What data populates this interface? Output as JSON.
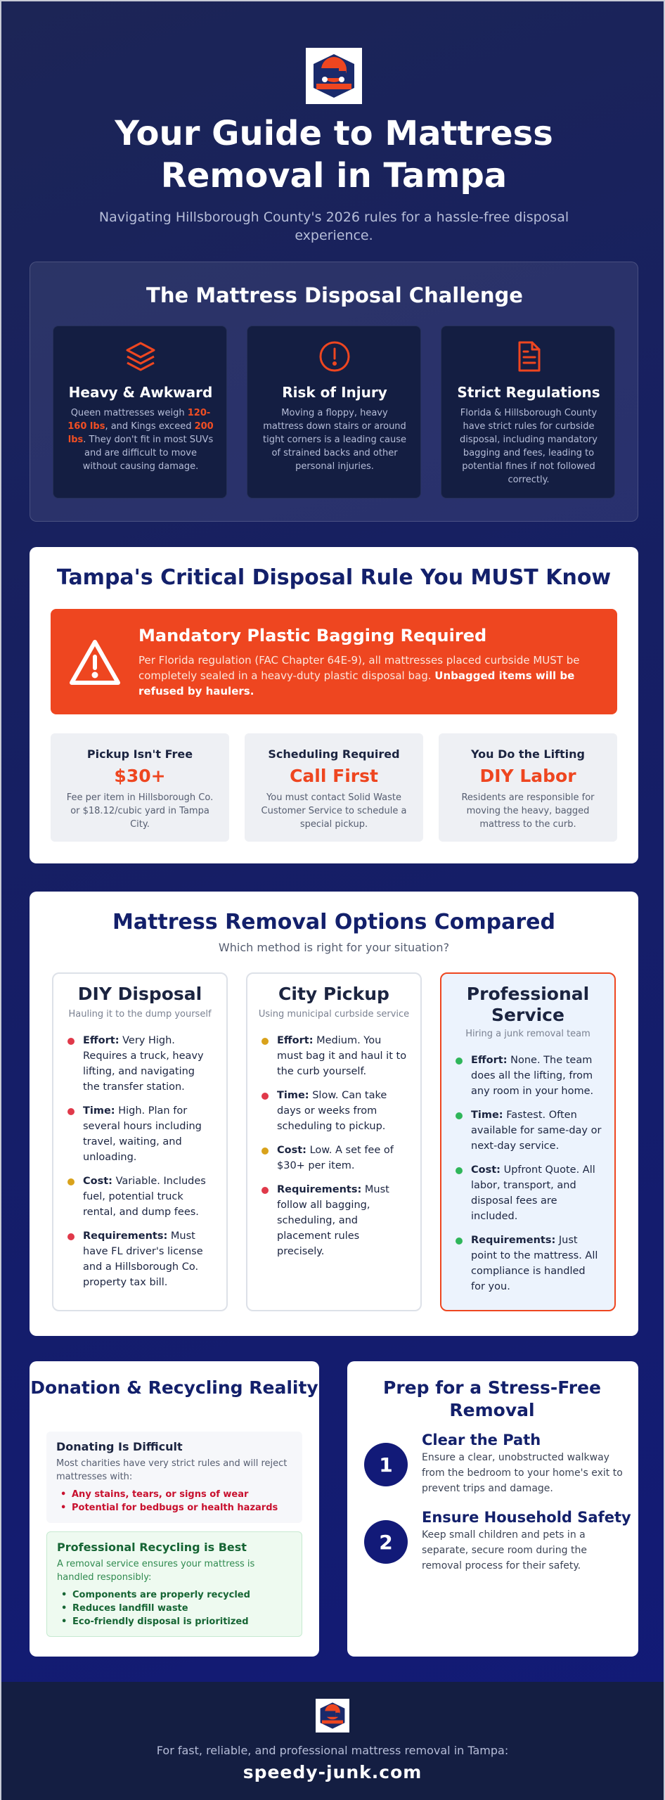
{
  "header": {
    "logo_alt": "SPEEDY HAULING",
    "title": "Your Guide to Mattress Removal in Tampa",
    "subtitle": "Navigating Hillsborough County's 2026 rules for a hassle-free disposal experience."
  },
  "challenge": {
    "title": "The Mattress Disposal Challenge",
    "cards": [
      {
        "icon": "layers-icon",
        "title": "Heavy & Awkward",
        "pre": "Queen mattresses weigh ",
        "hl1": "120-160 lbs",
        "mid": ", and Kings exceed ",
        "hl2": "200 lbs",
        "post": ". They don't fit in most SUVs and are difficult to move without causing damage."
      },
      {
        "icon": "alert-circle-icon",
        "title": "Risk of Injury",
        "text": "Moving a floppy, heavy mattress down stairs or around tight corners is a leading cause of strained backs and other personal injuries."
      },
      {
        "icon": "document-icon",
        "title": "Strict Regulations",
        "text": "Florida & Hillsborough County have strict rules for curbside disposal, including mandatory bagging and fees, leading to potential fines if not followed correctly."
      }
    ]
  },
  "rule": {
    "title": "Tampa's Critical Disposal Rule You MUST Know",
    "alert_title": "Mandatory Plastic Bagging Required",
    "alert_text": "Per Florida regulation (FAC Chapter 64E-9), all mattresses placed curbside MUST be completely sealed in a heavy-duty plastic disposal bag. ",
    "alert_bold": "Unbagged items will be refused by haulers.",
    "stats": [
      {
        "title": "Pickup Isn't Free",
        "value": "$30+",
        "text": "Fee per item in Hillsborough Co. or $18.12/cubic yard in Tampa City."
      },
      {
        "title": "Scheduling Required",
        "value": "Call First",
        "text": "You must contact Solid Waste Customer Service to schedule a special pickup."
      },
      {
        "title": "You Do the Lifting",
        "value": "DIY Labor",
        "text": "Residents are responsible for moving the heavy, bagged mattress to the curb."
      }
    ]
  },
  "options": {
    "title": "Mattress Removal Options Compared",
    "subtitle": "Which method is right for your situation?",
    "columns": [
      {
        "title": "DIY Disposal",
        "tagline": "Hauling it to the dump yourself",
        "items": [
          {
            "label": "Effort:",
            "text": " Very High. Requires a truck, heavy lifting, and navigating the transfer station.",
            "color": "#e0394a"
          },
          {
            "label": "Time:",
            "text": " High. Plan for several hours including travel, waiting, and unloading.",
            "color": "#e0394a"
          },
          {
            "label": "Cost:",
            "text": " Variable. Includes fuel, potential truck rental, and dump fees.",
            "color": "#d9a21b"
          },
          {
            "label": "Requirements:",
            "text": " Must have FL driver's license and a Hillsborough Co. property tax bill.",
            "color": "#e0394a"
          }
        ]
      },
      {
        "title": "City Pickup",
        "tagline": "Using municipal curbside service",
        "items": [
          {
            "label": "Effort:",
            "text": " Medium. You must bag it and haul it to the curb yourself.",
            "color": "#d9a21b"
          },
          {
            "label": "Time:",
            "text": " Slow. Can take days or weeks from scheduling to pickup.",
            "color": "#e0394a"
          },
          {
            "label": "Cost:",
            "text": " Low. A set fee of $30+ per item.",
            "color": "#d9a21b"
          },
          {
            "label": "Requirements:",
            "text": " Must follow all bagging, scheduling, and placement rules precisely.",
            "color": "#e0394a"
          }
        ]
      },
      {
        "title": "Professional Service",
        "tagline": "Hiring a junk removal team",
        "items": [
          {
            "label": "Effort:",
            "text": " None. The team does all the lifting, from any room in your home.",
            "color": "#2fb65a"
          },
          {
            "label": "Time:",
            "text": " Fastest. Often available for same-day or next-day service.",
            "color": "#2fb65a"
          },
          {
            "label": "Cost:",
            "text": " Upfront Quote. All labor, transport, and disposal fees are included.",
            "color": "#2fb65a"
          },
          {
            "label": "Requirements:",
            "text": " Just point to the mattress. All compliance is handled for you.",
            "color": "#2fb65a"
          }
        ]
      }
    ]
  },
  "donation": {
    "title": "Donation & Recycling Reality",
    "difficult_title": "Donating Is Difficult",
    "difficult_text": "Most charities have very strict rules and will reject mattresses with:",
    "difficult_items": [
      "Any stains, tears, or signs of wear",
      "Potential for bedbugs or health hazards"
    ],
    "recycle_title": "Professional Recycling is Best",
    "recycle_text": "A removal service ensures your mattress is handled responsibly:",
    "recycle_items": [
      "Components are properly recycled",
      "Reduces landfill waste",
      "Eco-friendly disposal is prioritized"
    ]
  },
  "prep": {
    "title": "Prep for a Stress-Free Removal",
    "steps": [
      {
        "num": "1",
        "title": "Clear the Path",
        "text": "Ensure a clear, unobstructed walkway from the bedroom to your home's exit to prevent trips and damage."
      },
      {
        "num": "2",
        "title": "Ensure Household Safety",
        "text": "Keep small children and pets in a separate, secure room during the removal process for their safety."
      }
    ]
  },
  "footer": {
    "text": "For fast, reliable, and professional mattress removal in Tampa:",
    "url": "speedy-junk.com"
  },
  "colors": {
    "accent": "#ee4620",
    "navy": "#13206b",
    "background": "#161f63"
  }
}
